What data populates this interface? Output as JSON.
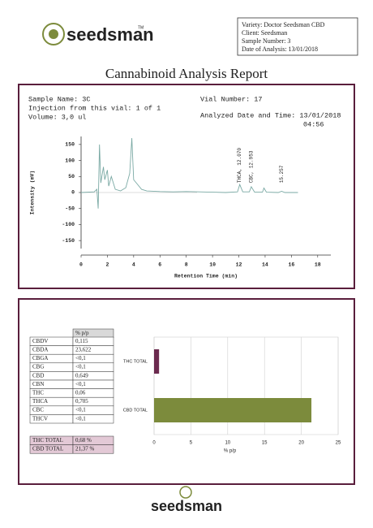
{
  "logo": {
    "text": "seedsman",
    "mark": "TM"
  },
  "sample_box": [
    "Variety: Doctor Seedsman CBD",
    "Client: Seedsman",
    "Sample Number: 3",
    "Date of Analysis: 13/01/2018"
  ],
  "title": "Cannabinoid Analysis Report",
  "run_info": {
    "sample_name": "Sample Name: 3C",
    "injection": "Injection from this vial: 1 of 1",
    "volume": "Volume: 3,0 ul",
    "vial": "Vial Number: 17",
    "analyzed": "Analyzed Date and Time: 13/01/2018",
    "time": "04:56"
  },
  "table": {
    "column_header": "% p/p",
    "rows": [
      [
        "CBDV",
        "0,115"
      ],
      [
        "CBDA",
        "23,622"
      ],
      [
        "CBGA",
        "<0,1"
      ],
      [
        "CBG",
        "<0,1"
      ],
      [
        "CBD",
        "0,649"
      ],
      [
        "CBN",
        "<0,1"
      ],
      [
        "THC",
        "0,06"
      ],
      [
        "THCA",
        "0,705"
      ],
      [
        "CBC",
        "<0,1"
      ],
      [
        "THCV",
        "<0,1"
      ]
    ],
    "totals": [
      [
        "THC TOTAL",
        "0,68 %"
      ],
      [
        "CBD TOTAL",
        "21,37 %"
      ]
    ]
  },
  "chart_data": [
    {
      "type": "line",
      "x_label": "Retention Time (min)",
      "y_label": "Intensity (mV)",
      "color": "#7aa9a4",
      "x": [
        0,
        1.0,
        1.2,
        1.3,
        1.4,
        1.5,
        1.7,
        1.8,
        2.0,
        2.1,
        2.3,
        2.6,
        3.0,
        3.4,
        3.7,
        3.86,
        4.0,
        4.3,
        4.6,
        5.0,
        6,
        7,
        8,
        9,
        10,
        11,
        11.9,
        12.07,
        12.3,
        12.8,
        12.95,
        13.2,
        13.8,
        13.91,
        14.1,
        15,
        15.26,
        15.5,
        16.5
      ],
      "values": [
        0,
        2,
        10,
        -50,
        150,
        30,
        80,
        40,
        70,
        20,
        50,
        10,
        5,
        15,
        60,
        170,
        40,
        25,
        10,
        5,
        3,
        2,
        3,
        2,
        1,
        0,
        2,
        25,
        2,
        2,
        18,
        1,
        1,
        14,
        1,
        0,
        4,
        0,
        0
      ],
      "xlim": [
        0,
        19
      ],
      "xticks": [
        0,
        2,
        4,
        6,
        8,
        10,
        12,
        14,
        16,
        18
      ],
      "ylim": [
        -175,
        175
      ],
      "yticks": [
        150,
        100,
        50,
        0,
        -50,
        -100,
        -150
      ],
      "annotations": [
        {
          "x": 12.07,
          "text": "THCA, 12.070"
        },
        {
          "x": 12.95,
          "text": "CBC, 12.953"
        },
        {
          "x": 15.26,
          "text": "15.257"
        }
      ]
    },
    {
      "type": "bar",
      "orientation": "horizontal",
      "categories": [
        "THC TOTAL",
        "CBD TOTAL"
      ],
      "values": [
        0.68,
        21.37
      ],
      "colors": [
        "#6b2a4e",
        "#7c8b3c"
      ],
      "xlim": [
        0,
        25
      ],
      "xticks": [
        0,
        5,
        10,
        15,
        20,
        25
      ],
      "x_label": "% p/p",
      "grid": true
    }
  ]
}
